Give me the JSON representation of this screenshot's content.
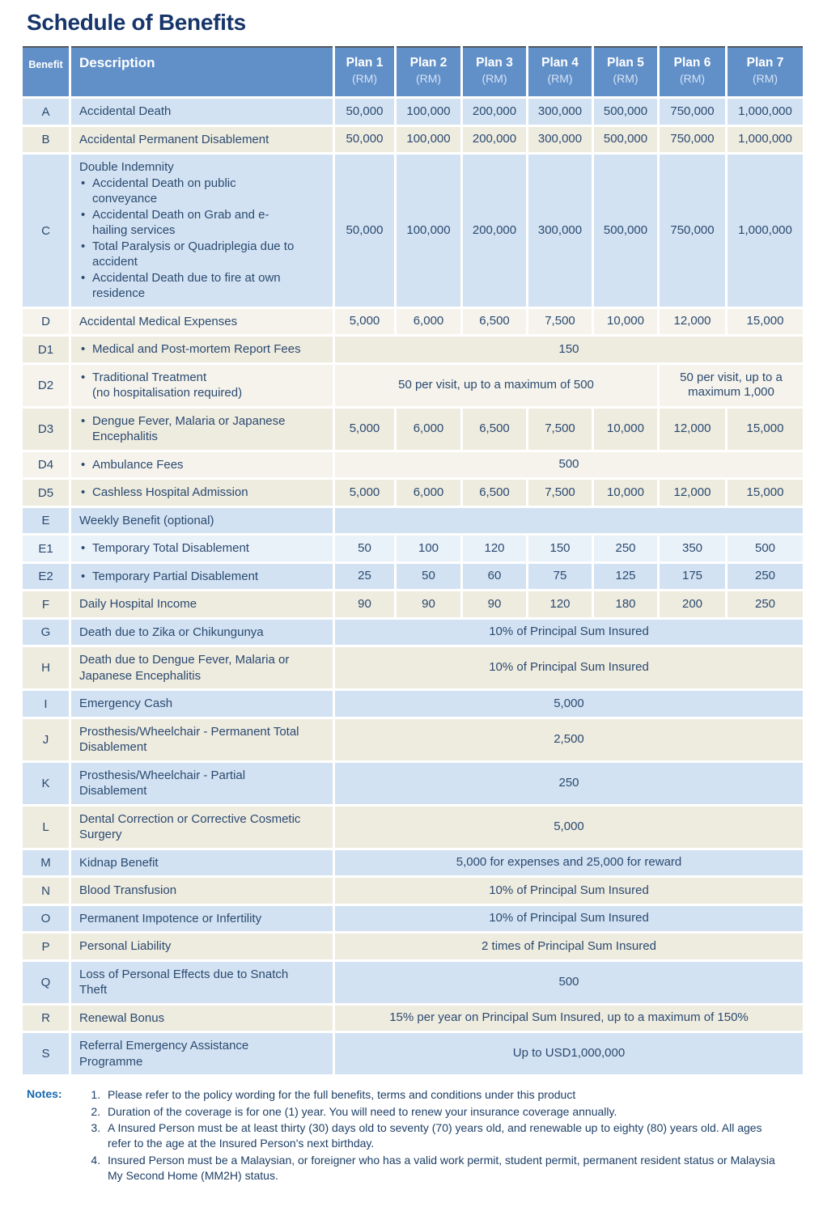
{
  "page_title": "Schedule of Benefits",
  "colors": {
    "header_blue": "#6190c8",
    "row_blue": "#d2e2f2",
    "row_cream": "#eeebdf",
    "row_offwhite": "#f5f3ec",
    "row_paleblue": "#e9f1f9",
    "title_navy": "#16356a",
    "text_navy": "#2b4a70",
    "notes_label_blue": "#1668b0",
    "header_top_line": "#54585c"
  },
  "table": {
    "header": {
      "benefit_label": "Benefit",
      "description_label": "Description",
      "plans": [
        {
          "name": "Plan 1",
          "unit": "(RM)"
        },
        {
          "name": "Plan 2",
          "unit": "(RM)"
        },
        {
          "name": "Plan 3",
          "unit": "(RM)"
        },
        {
          "name": "Plan 4",
          "unit": "(RM)"
        },
        {
          "name": "Plan 5",
          "unit": "(RM)"
        },
        {
          "name": "Plan 6",
          "unit": "(RM)"
        },
        {
          "name": "Plan 7",
          "unit": "(RM)"
        }
      ]
    },
    "rows": [
      {
        "benefit": "A",
        "tint": "blue",
        "desc": {
          "text": "Accidental Death"
        },
        "cells": [
          {
            "t": "50,000"
          },
          {
            "t": "100,000"
          },
          {
            "t": "200,000"
          },
          {
            "t": "300,000"
          },
          {
            "t": "500,000"
          },
          {
            "t": "750,000"
          },
          {
            "t": "1,000,000"
          }
        ]
      },
      {
        "benefit": "B",
        "tint": "cream",
        "desc": {
          "text": "Accidental Permanent Disablement"
        },
        "cells": [
          {
            "t": "50,000"
          },
          {
            "t": "100,000"
          },
          {
            "t": "200,000"
          },
          {
            "t": "300,000"
          },
          {
            "t": "500,000"
          },
          {
            "t": "750,000"
          },
          {
            "t": "1,000,000"
          }
        ]
      },
      {
        "benefit": "C",
        "tint": "blue",
        "desc": {
          "text": "Double Indemnity",
          "bullets": [
            "Accidental Death on public conveyance",
            "Accidental Death on Grab and e-hailing services",
            "Total Paralysis or Quadriplegia due to accident",
            "Accidental Death due to fire at own residence"
          ]
        },
        "cells": [
          {
            "t": "50,000"
          },
          {
            "t": "100,000"
          },
          {
            "t": "200,000"
          },
          {
            "t": "300,000"
          },
          {
            "t": "500,000"
          },
          {
            "t": "750,000"
          },
          {
            "t": "1,000,000"
          }
        ]
      },
      {
        "benefit": "D",
        "tint": "offwhite",
        "desc": {
          "text": "Accidental Medical Expenses"
        },
        "cells": [
          {
            "t": "5,000"
          },
          {
            "t": "6,000"
          },
          {
            "t": "6,500"
          },
          {
            "t": "7,500"
          },
          {
            "t": "10,000"
          },
          {
            "t": "12,000"
          },
          {
            "t": "15,000"
          }
        ]
      },
      {
        "benefit": "D1",
        "tint": "cream",
        "desc": {
          "text": "Medical and Post-mortem Report Fees",
          "bullet": true
        },
        "cells": [
          {
            "t": "150",
            "span": 7
          }
        ]
      },
      {
        "benefit": "D2",
        "tint": "offwhite",
        "desc": {
          "text": "Traditional Treatment",
          "bullet": true,
          "sub": "(no hospitalisation required)"
        },
        "cells": [
          {
            "t": "50 per visit, up to a maximum of 500",
            "span": 5
          },
          {
            "t": "50 per visit, up to a maximum 1,000",
            "span": 2
          }
        ]
      },
      {
        "benefit": "D3",
        "tint": "cream",
        "desc": {
          "text": "Dengue Fever, Malaria or Japanese Encephalitis",
          "bullet": true
        },
        "cells": [
          {
            "t": "5,000"
          },
          {
            "t": "6,000"
          },
          {
            "t": "6,500"
          },
          {
            "t": "7,500"
          },
          {
            "t": "10,000"
          },
          {
            "t": "12,000"
          },
          {
            "t": "15,000"
          }
        ]
      },
      {
        "benefit": "D4",
        "tint": "offwhite",
        "desc": {
          "text": "Ambulance Fees",
          "bullet": true
        },
        "cells": [
          {
            "t": "500",
            "span": 7
          }
        ]
      },
      {
        "benefit": "D5",
        "tint": "cream",
        "desc": {
          "text": "Cashless Hospital Admission",
          "bullet": true
        },
        "cells": [
          {
            "t": "5,000"
          },
          {
            "t": "6,000"
          },
          {
            "t": "6,500"
          },
          {
            "t": "7,500"
          },
          {
            "t": "10,000"
          },
          {
            "t": "12,000"
          },
          {
            "t": "15,000"
          }
        ]
      },
      {
        "benefit": "E",
        "tint": "blue",
        "desc": {
          "text": "Weekly Benefit (optional)"
        },
        "cells": [
          {
            "t": "",
            "span": 7
          }
        ]
      },
      {
        "benefit": "E1",
        "tint": "pale",
        "desc": {
          "text": "Temporary Total Disablement",
          "bullet": true
        },
        "cells": [
          {
            "t": "50"
          },
          {
            "t": "100"
          },
          {
            "t": "120"
          },
          {
            "t": "150"
          },
          {
            "t": "250"
          },
          {
            "t": "350"
          },
          {
            "t": "500"
          }
        ]
      },
      {
        "benefit": "E2",
        "tint": "blue",
        "desc": {
          "text": "Temporary Partial Disablement",
          "bullet": true
        },
        "cells": [
          {
            "t": "25"
          },
          {
            "t": "50"
          },
          {
            "t": "60"
          },
          {
            "t": "75"
          },
          {
            "t": "125"
          },
          {
            "t": "175"
          },
          {
            "t": "250"
          }
        ]
      },
      {
        "benefit": "F",
        "tint": "cream",
        "desc": {
          "text": "Daily Hospital Income"
        },
        "cells": [
          {
            "t": "90"
          },
          {
            "t": "90"
          },
          {
            "t": "90"
          },
          {
            "t": "120"
          },
          {
            "t": "180"
          },
          {
            "t": "200"
          },
          {
            "t": "250"
          }
        ]
      },
      {
        "benefit": "G",
        "tint": "blue",
        "desc": {
          "text": "Death due to Zika or Chikungunya"
        },
        "cells": [
          {
            "t": "10% of Principal Sum Insured",
            "span": 7
          }
        ]
      },
      {
        "benefit": "H",
        "tint": "cream",
        "desc": {
          "text": "Death due to Dengue Fever, Malaria or Japanese Encephalitis"
        },
        "cells": [
          {
            "t": "10% of Principal Sum Insured",
            "span": 7
          }
        ]
      },
      {
        "benefit": "I",
        "tint": "blue",
        "desc": {
          "text": "Emergency Cash"
        },
        "cells": [
          {
            "t": "5,000",
            "span": 7
          }
        ]
      },
      {
        "benefit": "J",
        "tint": "cream",
        "desc": {
          "text": "Prosthesis/Wheelchair - Permanent Total Disablement"
        },
        "cells": [
          {
            "t": "2,500",
            "span": 7
          }
        ]
      },
      {
        "benefit": "K",
        "tint": "blue",
        "desc": {
          "text": "Prosthesis/Wheelchair - Partial Disablement"
        },
        "cells": [
          {
            "t": "250",
            "span": 7
          }
        ]
      },
      {
        "benefit": "L",
        "tint": "cream",
        "desc": {
          "text": "Dental Correction or Corrective Cosmetic Surgery"
        },
        "cells": [
          {
            "t": "5,000",
            "span": 7
          }
        ]
      },
      {
        "benefit": "M",
        "tint": "blue",
        "desc": {
          "text": "Kidnap Benefit"
        },
        "cells": [
          {
            "t": "5,000 for expenses and 25,000 for reward",
            "span": 7
          }
        ]
      },
      {
        "benefit": "N",
        "tint": "cream",
        "desc": {
          "text": "Blood Transfusion"
        },
        "cells": [
          {
            "t": "10% of Principal Sum Insured",
            "span": 7
          }
        ]
      },
      {
        "benefit": "O",
        "tint": "blue",
        "desc": {
          "text": "Permanent Impotence or Infertility"
        },
        "cells": [
          {
            "t": "10% of Principal Sum Insured",
            "span": 7
          }
        ]
      },
      {
        "benefit": "P",
        "tint": "cream",
        "desc": {
          "text": "Personal Liability"
        },
        "cells": [
          {
            "t": "2 times of Principal Sum Insured",
            "span": 7
          }
        ]
      },
      {
        "benefit": "Q",
        "tint": "blue",
        "desc": {
          "text": "Loss of Personal Effects due to Snatch Theft"
        },
        "cells": [
          {
            "t": "500",
            "span": 7
          }
        ]
      },
      {
        "benefit": "R",
        "tint": "cream",
        "desc": {
          "text": "Renewal Bonus"
        },
        "cells": [
          {
            "t": "15% per year on Principal Sum Insured, up to a maximum of 150%",
            "span": 7
          }
        ]
      },
      {
        "benefit": "S",
        "tint": "blue",
        "desc": {
          "text": "Referral Emergency Assistance Programme"
        },
        "cells": [
          {
            "t": "Up to USD1,000,000",
            "span": 7
          }
        ]
      }
    ]
  },
  "notes": {
    "label": "Notes:",
    "items": [
      "Please refer to the policy wording for the full benefits, terms and conditions under this product",
      "Duration of the coverage is for one (1) year. You will need to renew your insurance coverage annually.",
      "A Insured Person must be at least thirty (30) days old to seventy (70) years old, and renewable up to eighty (80) years old. All ages refer to the age at the Insured Person's next birthday.",
      "Insured Person must be a Malaysian, or foreigner who has a valid work permit, student permit, permanent resident status or Malaysia My Second Home (MM2H) status."
    ]
  }
}
